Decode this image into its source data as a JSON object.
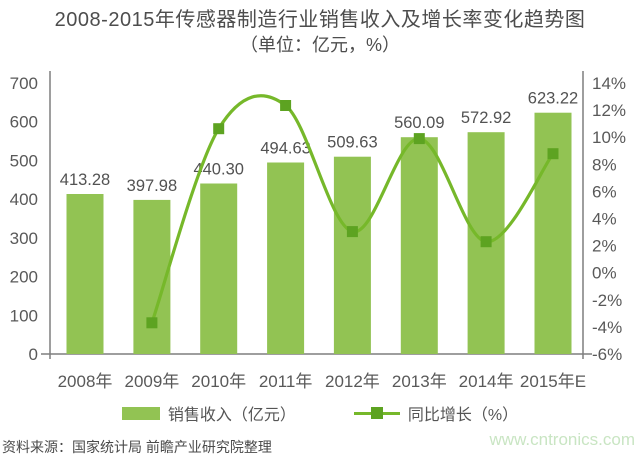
{
  "title": {
    "line1": "2008-2015年传感器制造行业销售收入及增长率变化趋势图",
    "line2": "（单位：亿元，%）"
  },
  "colors": {
    "bar": "#92c353",
    "line": "#76b82a",
    "marker": "#5da321",
    "axis": "#7f7f7f",
    "tick_text": "#595959",
    "bar_label_text": "#525252",
    "watermark": "#c9e5c3"
  },
  "chart_data": {
    "type": "bar",
    "title": "2008-2015年传感器制造行业销售收入及增长率变化趋势图",
    "subtitle": "（单位：亿元，%）",
    "categories": [
      "2008年",
      "2009年",
      "2010年",
      "2011年",
      "2012年",
      "2013年",
      "2014年",
      "2015年E"
    ],
    "series": [
      {
        "name": "销售收入（亿元）",
        "type": "bar",
        "axis": "left",
        "values": [
          413.28,
          397.98,
          440.3,
          494.63,
          509.63,
          560.09,
          572.92,
          623.22
        ],
        "labels": [
          "413.28",
          "397.98",
          "440.30",
          "494.63",
          "509.63",
          "560.09",
          "572.92",
          "623.22"
        ]
      },
      {
        "name": "同比增长（%）",
        "type": "line",
        "axis": "right",
        "values": [
          null,
          -3.7,
          10.63,
          12.34,
          3.03,
          9.9,
          2.29,
          8.78
        ]
      }
    ],
    "left_axis": {
      "min": 0,
      "max": 700,
      "ticks": [
        "0",
        "100",
        "200",
        "300",
        "400",
        "500",
        "600",
        "700"
      ]
    },
    "right_axis": {
      "min": -6,
      "max": 14,
      "ticks": [
        "-6%",
        "-4%",
        "-2%",
        "0%",
        "2%",
        "4%",
        "6%",
        "8%",
        "10%",
        "12%",
        "14%"
      ]
    },
    "grid": false,
    "legend_position": "bottom"
  },
  "footer": {
    "source": "资料来源：国家统计局 前瞻产业研究院整理",
    "watermark": "www.cntronics.com"
  }
}
